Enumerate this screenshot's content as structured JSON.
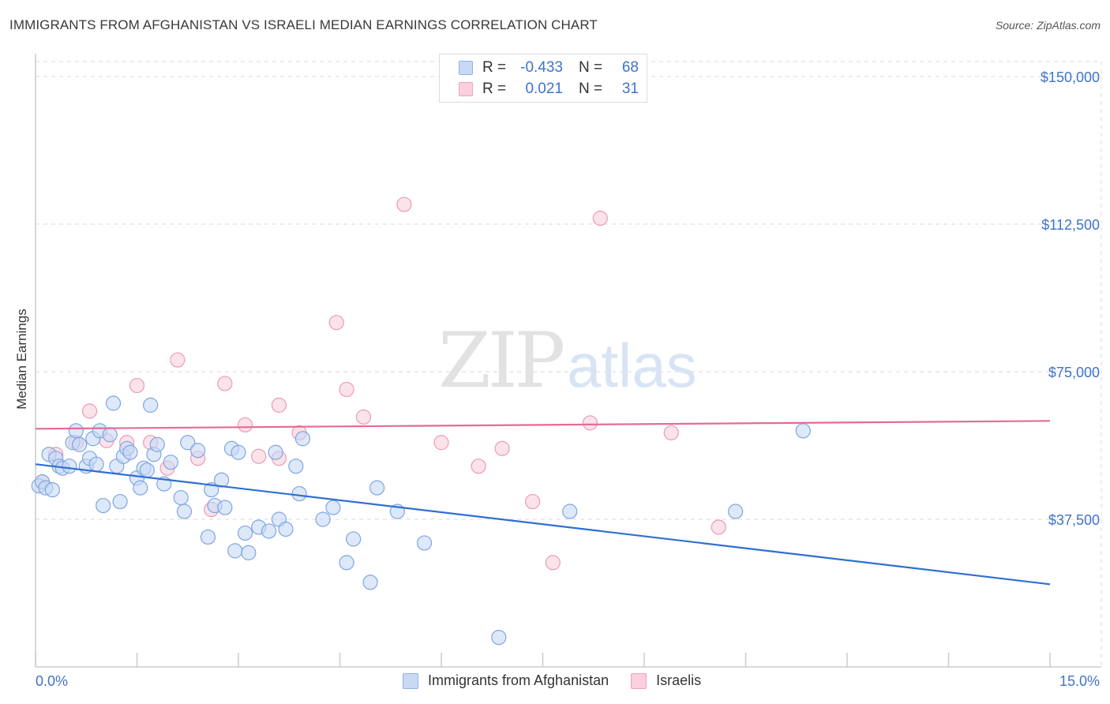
{
  "title": "IMMIGRANTS FROM AFGHANISTAN VS ISRAELI MEDIAN EARNINGS CORRELATION CHART",
  "source": "Source: ZipAtlas.com",
  "watermark": {
    "zip": "ZIP",
    "atlas": "atlas"
  },
  "legend": {
    "rows": [
      {
        "r_label": "R =",
        "r_value": "-0.433",
        "n_label": "N =",
        "n_value": "68"
      },
      {
        "r_label": "R =",
        "r_value": "0.021",
        "n_label": "N =",
        "n_value": "31"
      }
    ]
  },
  "colors": {
    "blue_fill": "#c7d9f5",
    "blue_stroke": "#7ea6e0",
    "blue_line": "#2f6fd1",
    "pink_fill": "#f9d0dc",
    "pink_stroke": "#eb9bb5",
    "pink_line": "#e56b93",
    "tick_text": "#3f73c9",
    "grid": "#d9d9d9"
  },
  "chart_data": {
    "type": "scatter",
    "title": "IMMIGRANTS FROM AFGHANISTAN VS ISRAELI MEDIAN EARNINGS CORRELATION CHART",
    "xlabel": "",
    "ylabel": "Median Earnings",
    "xlim": [
      0,
      15
    ],
    "ylim": [
      0,
      150000
    ],
    "x_tick_labels": [
      {
        "value": 0,
        "label": "0.0%"
      },
      {
        "value": 15,
        "label": "15.0%"
      }
    ],
    "y_ticks": [
      {
        "value": 37500,
        "label": "$37,500"
      },
      {
        "value": 75000,
        "label": "$75,000"
      },
      {
        "value": 112500,
        "label": "$112,500"
      },
      {
        "value": 150000,
        "label": "$150,000"
      }
    ],
    "series": [
      {
        "name": "Immigrants from Afghanistan",
        "color": "blue",
        "trend": {
          "x": [
            0,
            15
          ],
          "y": [
            51500,
            21000
          ]
        },
        "points": [
          [
            0.05,
            46000
          ],
          [
            0.1,
            47000
          ],
          [
            0.15,
            45500
          ],
          [
            0.2,
            54000
          ],
          [
            0.25,
            45000
          ],
          [
            0.3,
            53000
          ],
          [
            0.35,
            51000
          ],
          [
            0.4,
            50500
          ],
          [
            0.5,
            51000
          ],
          [
            0.55,
            57000
          ],
          [
            0.6,
            60000
          ],
          [
            0.65,
            56500
          ],
          [
            0.75,
            51000
          ],
          [
            0.8,
            53000
          ],
          [
            0.85,
            58000
          ],
          [
            0.9,
            51500
          ],
          [
            0.95,
            60000
          ],
          [
            1.0,
            41000
          ],
          [
            1.1,
            59000
          ],
          [
            1.15,
            67000
          ],
          [
            1.2,
            51000
          ],
          [
            1.25,
            42000
          ],
          [
            1.3,
            53500
          ],
          [
            1.35,
            55500
          ],
          [
            1.4,
            54500
          ],
          [
            1.5,
            48000
          ],
          [
            1.55,
            45500
          ],
          [
            1.6,
            50500
          ],
          [
            1.65,
            50000
          ],
          [
            1.7,
            66500
          ],
          [
            1.75,
            54000
          ],
          [
            1.8,
            56500
          ],
          [
            1.9,
            46500
          ],
          [
            2.0,
            52000
          ],
          [
            2.15,
            43000
          ],
          [
            2.2,
            39500
          ],
          [
            2.25,
            57000
          ],
          [
            2.4,
            55000
          ],
          [
            2.55,
            33000
          ],
          [
            2.6,
            45000
          ],
          [
            2.65,
            41000
          ],
          [
            2.75,
            47500
          ],
          [
            2.8,
            40500
          ],
          [
            2.9,
            55500
          ],
          [
            2.95,
            29500
          ],
          [
            3.0,
            54500
          ],
          [
            3.1,
            34000
          ],
          [
            3.15,
            29000
          ],
          [
            3.3,
            35500
          ],
          [
            3.45,
            34500
          ],
          [
            3.55,
            54500
          ],
          [
            3.6,
            37500
          ],
          [
            3.7,
            35000
          ],
          [
            3.85,
            51000
          ],
          [
            3.9,
            44000
          ],
          [
            3.95,
            58000
          ],
          [
            4.25,
            37500
          ],
          [
            4.4,
            40500
          ],
          [
            4.6,
            26500
          ],
          [
            4.7,
            32500
          ],
          [
            4.95,
            21500
          ],
          [
            5.05,
            45500
          ],
          [
            5.35,
            39500
          ],
          [
            5.75,
            31500
          ],
          [
            6.85,
            7500
          ],
          [
            7.9,
            39500
          ],
          [
            10.35,
            39500
          ],
          [
            11.35,
            60000
          ]
        ]
      },
      {
        "name": "Israelis",
        "color": "pink",
        "trend": {
          "x": [
            0,
            15
          ],
          "y": [
            60500,
            62500
          ]
        },
        "points": [
          [
            0.1,
            47000
          ],
          [
            0.3,
            54000
          ],
          [
            0.6,
            57000
          ],
          [
            0.8,
            65000
          ],
          [
            1.05,
            57500
          ],
          [
            1.35,
            57000
          ],
          [
            1.5,
            71500
          ],
          [
            1.7,
            57000
          ],
          [
            1.95,
            50500
          ],
          [
            2.1,
            78000
          ],
          [
            2.4,
            53000
          ],
          [
            2.6,
            40000
          ],
          [
            2.8,
            72000
          ],
          [
            3.1,
            61500
          ],
          [
            3.3,
            53500
          ],
          [
            3.6,
            66500
          ],
          [
            3.6,
            53000
          ],
          [
            3.9,
            59500
          ],
          [
            4.45,
            87500
          ],
          [
            4.6,
            70500
          ],
          [
            4.85,
            63500
          ],
          [
            5.45,
            117500
          ],
          [
            6.0,
            57000
          ],
          [
            6.55,
            51000
          ],
          [
            6.9,
            55500
          ],
          [
            7.35,
            42000
          ],
          [
            7.65,
            26500
          ],
          [
            8.2,
            62000
          ],
          [
            8.35,
            114000
          ],
          [
            9.4,
            59500
          ],
          [
            10.1,
            35500
          ]
        ]
      }
    ]
  },
  "bottom_legend": {
    "items": [
      "Immigrants from Afghanistan",
      "Israelis"
    ]
  }
}
